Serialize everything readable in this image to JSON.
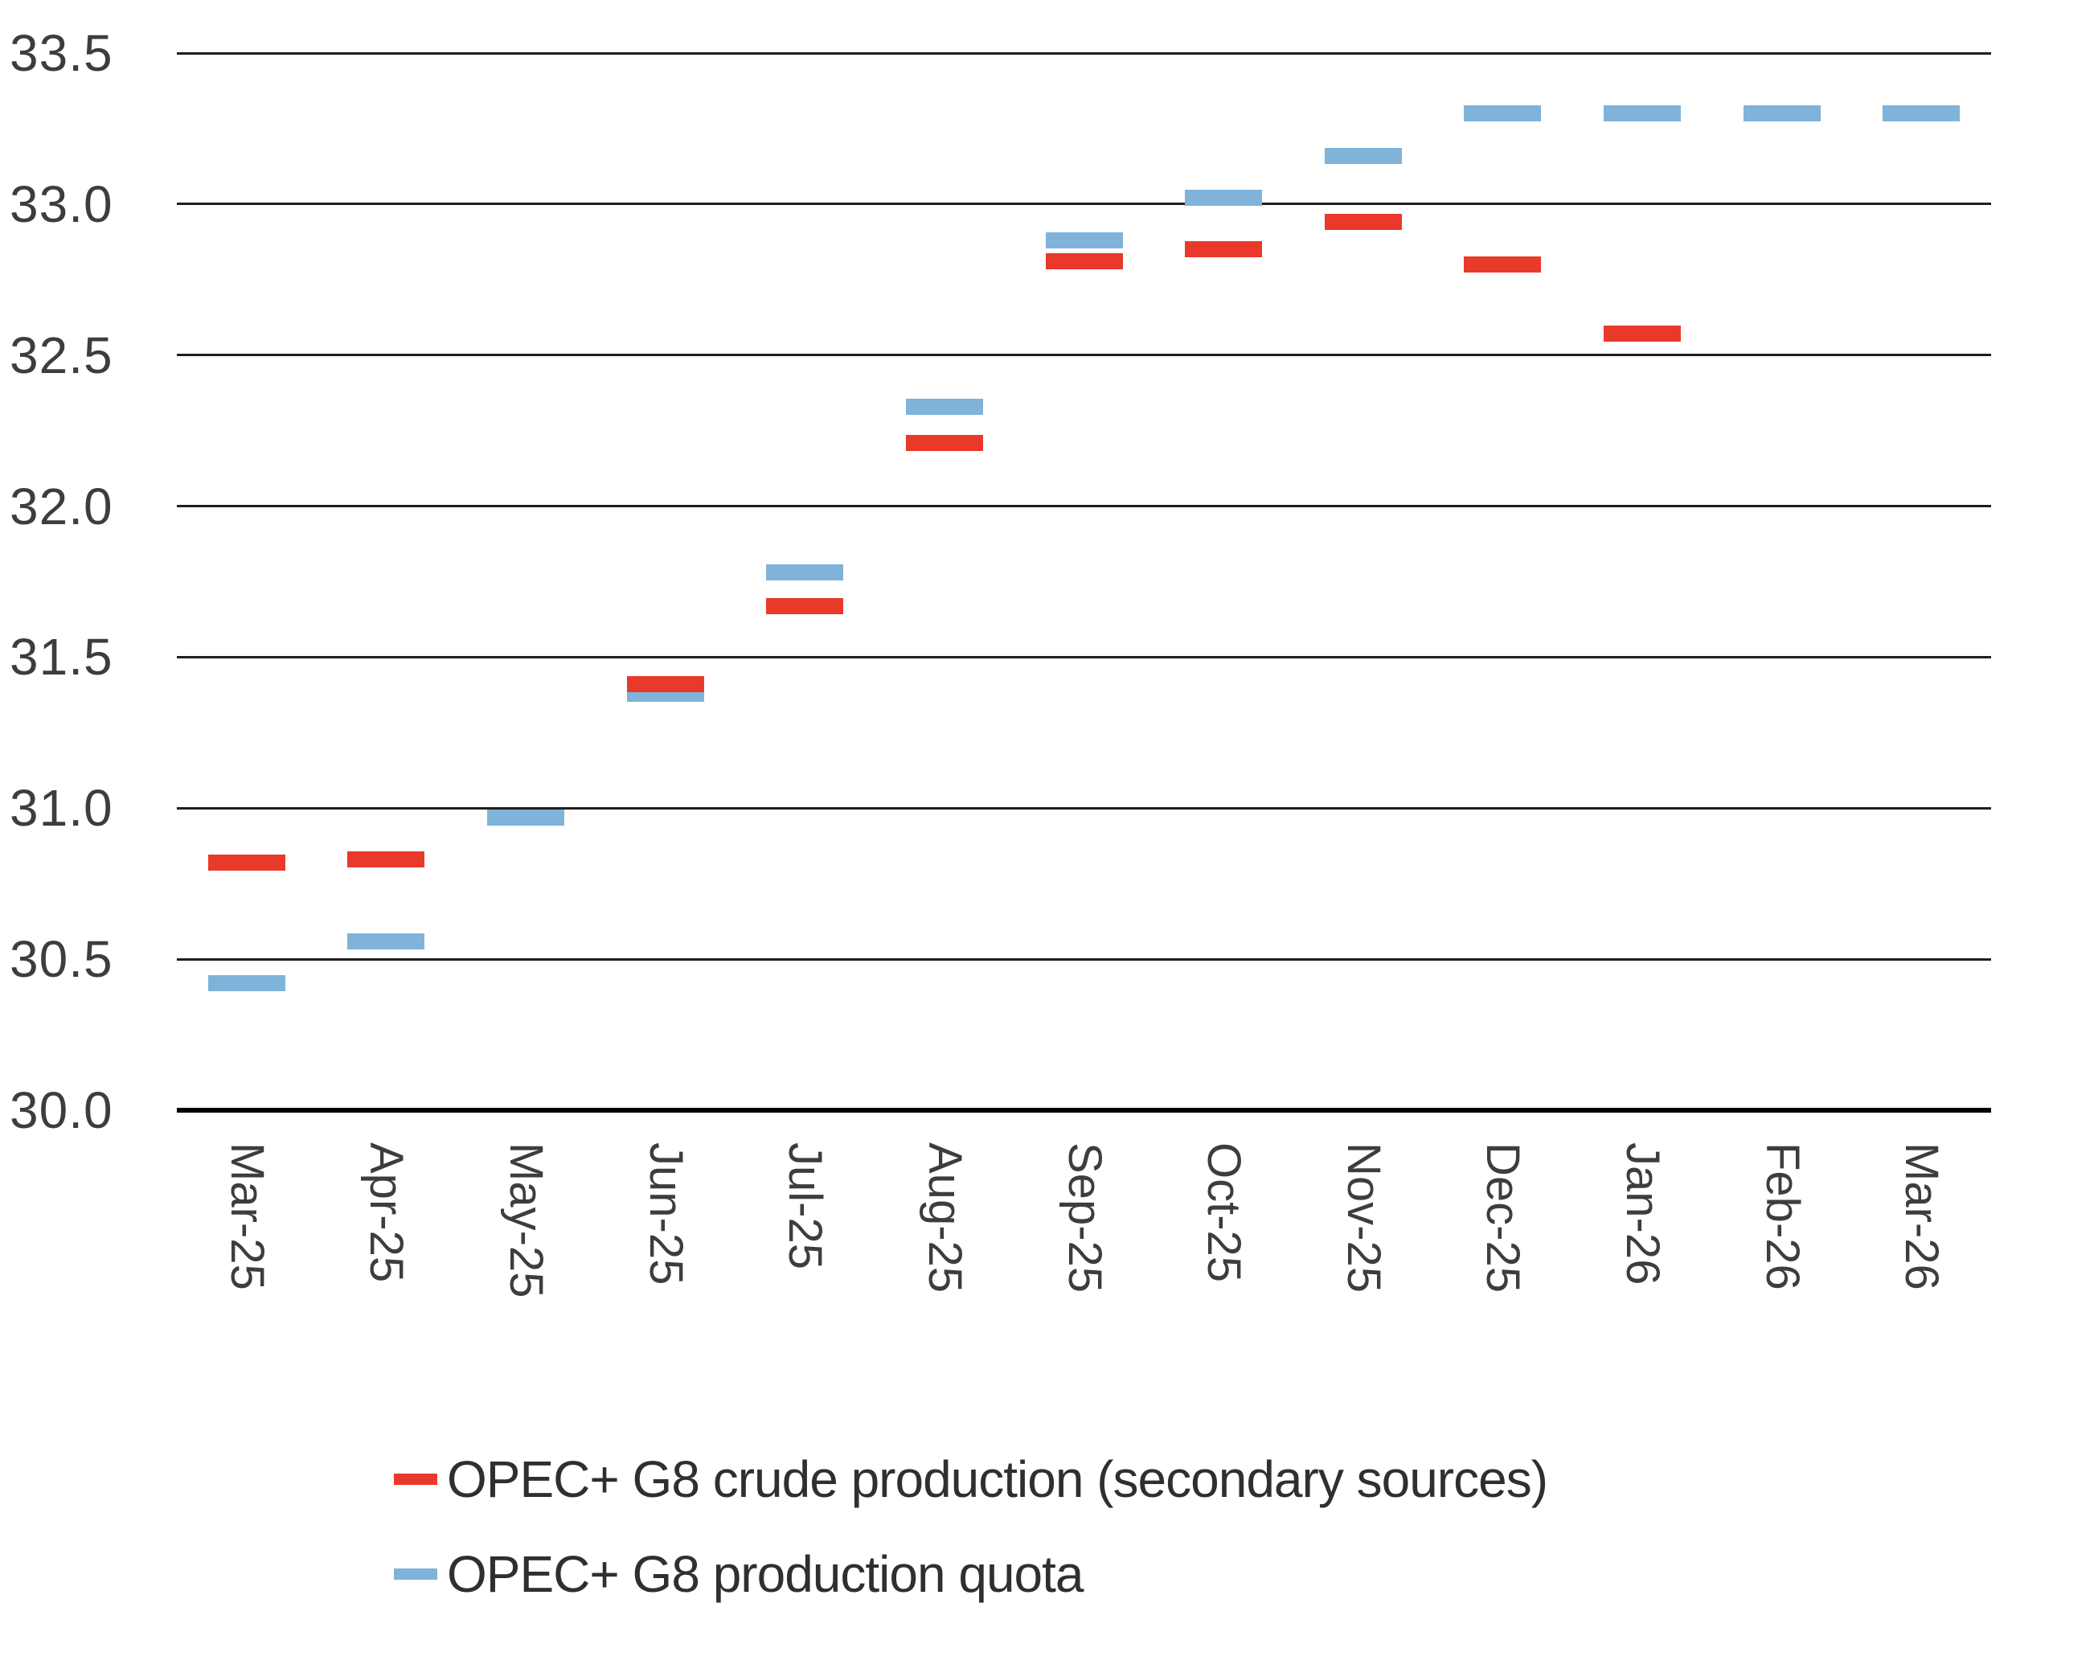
{
  "chart_data": {
    "type": "scatter",
    "marker_style": "horizontal-dash",
    "title": "",
    "xlabel": "",
    "ylabel": "",
    "categories": [
      "Mar-25",
      "Apr-25",
      "May-25",
      "Jun-25",
      "Jul-25",
      "Aug-25",
      "Sep-25",
      "Oct-25",
      "Nov-25",
      "Dec-25",
      "Jan-26",
      "Feb-26",
      "Mar-26"
    ],
    "series": [
      {
        "name": "OPEC+ G8 crude production (secondary sources)",
        "color": "#e8392b",
        "values": [
          30.82,
          30.83,
          null,
          31.41,
          31.67,
          32.21,
          32.81,
          32.85,
          32.94,
          32.8,
          32.57,
          null,
          null
        ]
      },
      {
        "name": "OPEC+ G8 production quota",
        "color": "#7fb3d9",
        "values": [
          30.42,
          30.56,
          30.97,
          31.38,
          31.78,
          32.33,
          32.88,
          33.02,
          33.16,
          33.3,
          33.3,
          33.3,
          33.3
        ]
      }
    ],
    "ylim": [
      30.0,
      33.5
    ],
    "y_tick_labels": [
      "33.5",
      "33.0",
      "32.5",
      "32.0",
      "31.5",
      "31.0",
      "30.5",
      "30.0"
    ],
    "grid": "horizontal",
    "legend_position": "bottom-left"
  }
}
